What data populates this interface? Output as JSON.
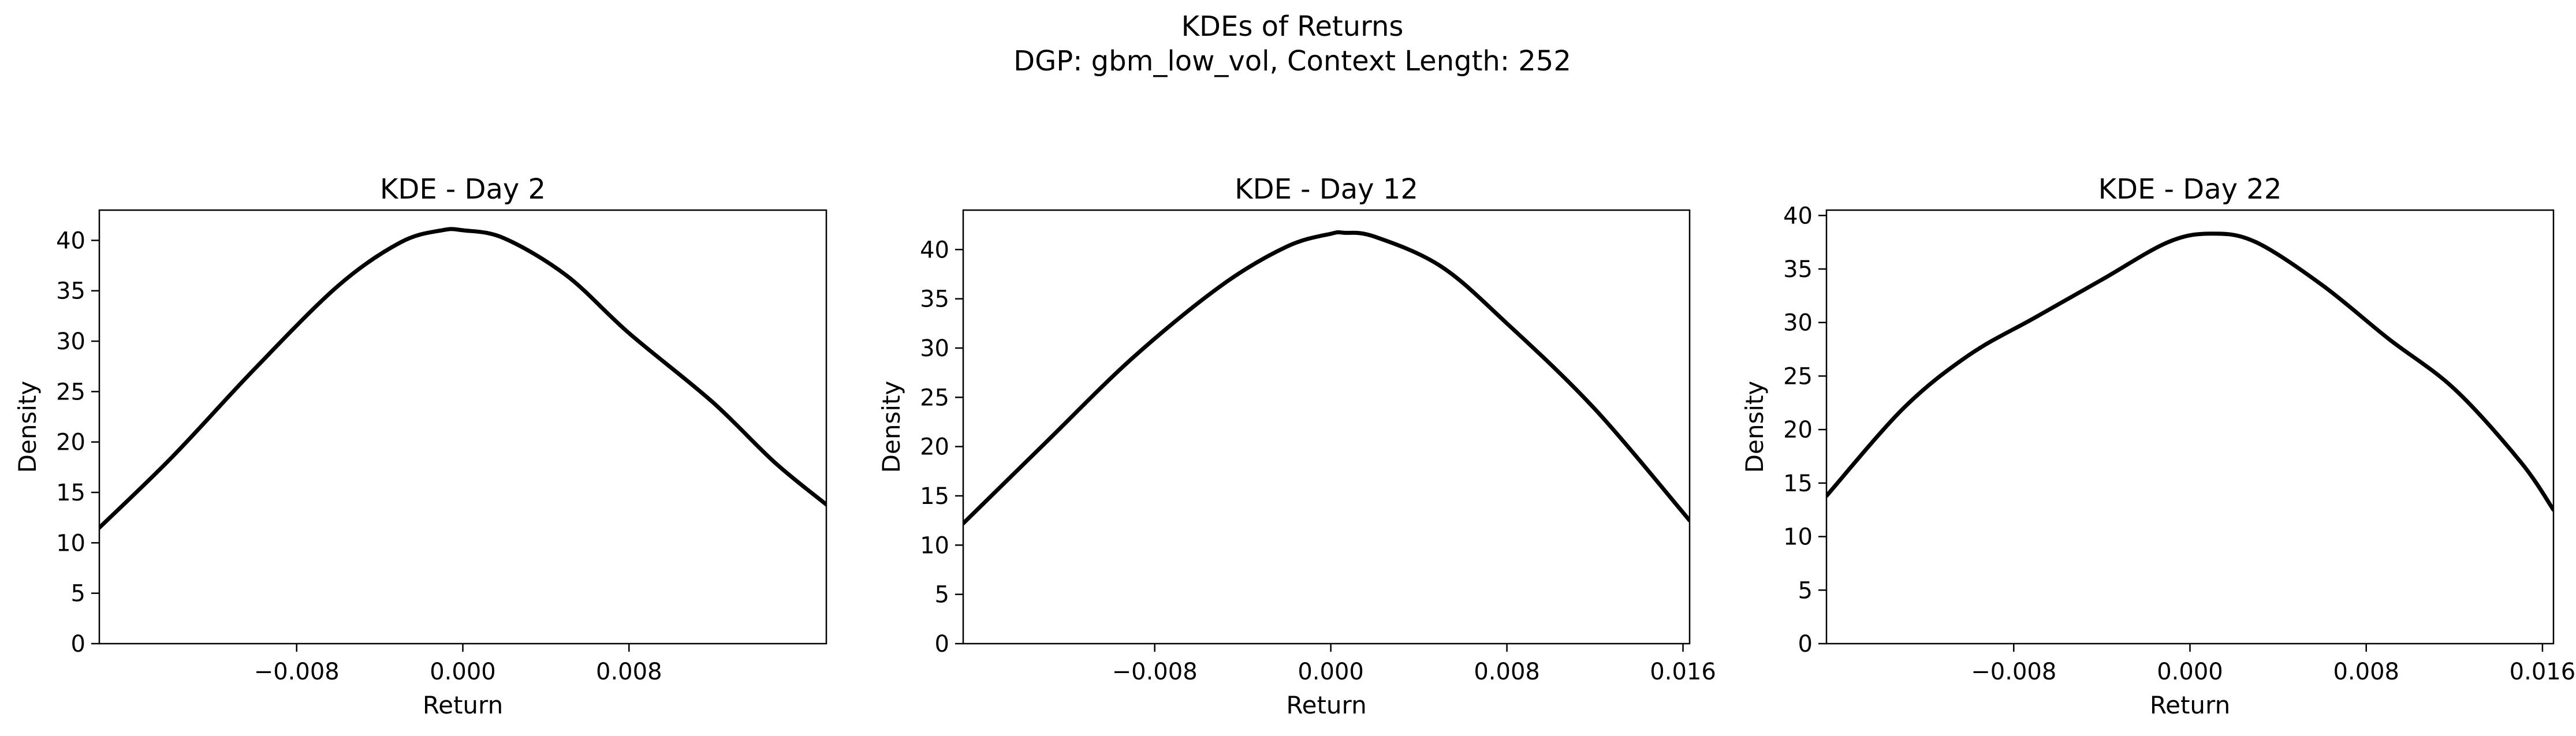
{
  "figure": {
    "suptitle_line1": "KDEs of Returns",
    "suptitle_line2": "DGP: gbm_low_vol, Context Length: 252"
  },
  "chart_data": [
    {
      "type": "line",
      "title": "KDE - Day 2",
      "xlabel": "Return",
      "ylabel": "Density",
      "xlim": [
        -0.0175,
        0.0175
      ],
      "ylim": [
        0,
        43
      ],
      "xticks": [
        -0.008,
        0.0,
        0.008
      ],
      "xtick_labels": [
        "−0.008",
        "0.000",
        "0.008"
      ],
      "yticks": [
        0,
        5,
        10,
        15,
        20,
        25,
        30,
        35,
        40
      ],
      "ytick_labels": [
        "0",
        "5",
        "10",
        "15",
        "20",
        "25",
        "30",
        "35",
        "40"
      ],
      "grid": false,
      "series": [
        {
          "color": "#000000",
          "x": [
            -0.0175,
            -0.014,
            -0.01,
            -0.006,
            -0.003,
            -0.001,
            0.0,
            0.002,
            0.005,
            0.008,
            0.012,
            0.015,
            0.0175
          ],
          "y": [
            11.5,
            18.5,
            27.3,
            35.5,
            39.8,
            41.0,
            41.0,
            40.2,
            36.5,
            30.8,
            24.0,
            18.0,
            13.8
          ]
        }
      ]
    },
    {
      "type": "line",
      "title": "KDE - Day 12",
      "xlabel": "Return",
      "ylabel": "Density",
      "xlim": [
        -0.0167,
        0.0163
      ],
      "ylim": [
        0,
        44
      ],
      "xticks": [
        -0.008,
        0.0,
        0.008,
        0.016
      ],
      "xtick_labels": [
        "−0.008",
        "0.000",
        "0.008",
        "0.016"
      ],
      "yticks": [
        0,
        5,
        10,
        15,
        20,
        25,
        30,
        35,
        40
      ],
      "ytick_labels": [
        "0",
        "5",
        "10",
        "15",
        "20",
        "25",
        "30",
        "35",
        "40"
      ],
      "grid": false,
      "series": [
        {
          "color": "#000000",
          "x": [
            -0.0167,
            -0.013,
            -0.009,
            -0.005,
            -0.002,
            0.0,
            0.0006,
            0.002,
            0.005,
            0.008,
            0.012,
            0.0163
          ],
          "y": [
            12.2,
            20.3,
            29.0,
            36.3,
            40.3,
            41.6,
            41.7,
            41.3,
            38.3,
            32.5,
            23.8,
            12.5
          ]
        }
      ]
    },
    {
      "type": "line",
      "title": "KDE - Day 22",
      "xlabel": "Return",
      "ylabel": "Density",
      "xlim": [
        -0.0165,
        0.0165
      ],
      "ylim": [
        0,
        40.5
      ],
      "xticks": [
        -0.008,
        0.0,
        0.008,
        0.016
      ],
      "xtick_labels": [
        "−0.008",
        "0.000",
        "0.008",
        "0.016"
      ],
      "yticks": [
        0,
        5,
        10,
        15,
        20,
        25,
        30,
        35,
        40
      ],
      "ytick_labels": [
        "0",
        "5",
        "10",
        "15",
        "20",
        "25",
        "30",
        "35",
        "40"
      ],
      "grid": false,
      "series": [
        {
          "color": "#000000",
          "x": [
            -0.0165,
            -0.013,
            -0.01,
            -0.007,
            -0.004,
            -0.001,
            0.001,
            0.003,
            0.006,
            0.009,
            0.012,
            0.015,
            0.0165
          ],
          "y": [
            13.8,
            22.0,
            27.0,
            30.5,
            34.0,
            37.5,
            38.3,
            37.5,
            33.5,
            28.5,
            23.8,
            17.0,
            12.5
          ]
        }
      ]
    }
  ]
}
